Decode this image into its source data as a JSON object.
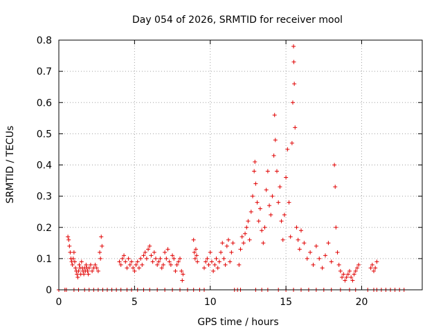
{
  "chart_data": {
    "type": "scatter",
    "title": "Day 054 of 2026, SRMTID for receiver mool",
    "xlabel": "GPS time / hours",
    "ylabel": "SRMTID / TECUs",
    "xlim": [
      0,
      24
    ],
    "ylim": [
      0,
      0.8
    ],
    "xticks": [
      0,
      5,
      10,
      15,
      20
    ],
    "yticks": [
      0,
      0.1,
      0.2,
      0.3,
      0.4,
      0.5,
      0.6,
      0.7,
      0.8
    ],
    "xtick_labels": [
      "0",
      "5",
      "10",
      "15",
      "20"
    ],
    "ytick_labels": [
      "0",
      "0.1",
      "0.2",
      "0.3",
      "0.4",
      "0.5",
      "0.6",
      "0.7",
      "0.8"
    ],
    "grid": true,
    "marker": "+",
    "color": "#e00000",
    "series": [
      {
        "name": "SRMTID",
        "points": [
          [
            0.0,
            0.0
          ],
          [
            0.4,
            0.0
          ],
          [
            0.5,
            0.0
          ],
          [
            1.0,
            0.0
          ],
          [
            1.3,
            0.0
          ],
          [
            1.7,
            0.0
          ],
          [
            2.0,
            0.0
          ],
          [
            2.3,
            0.0
          ],
          [
            2.6,
            0.0
          ],
          [
            2.9,
            0.0
          ],
          [
            3.2,
            0.0
          ],
          [
            3.5,
            0.0
          ],
          [
            3.8,
            0.0
          ],
          [
            4.1,
            0.0
          ],
          [
            4.5,
            0.0
          ],
          [
            4.8,
            0.0
          ],
          [
            5.2,
            0.0
          ],
          [
            5.6,
            0.0
          ],
          [
            6.0,
            0.0
          ],
          [
            6.5,
            0.0
          ],
          [
            7.0,
            0.0
          ],
          [
            7.5,
            0.0
          ],
          [
            8.0,
            0.0
          ],
          [
            8.5,
            0.0
          ],
          [
            8.9,
            0.0
          ],
          [
            9.3,
            0.0
          ],
          [
            9.6,
            0.0
          ],
          [
            11.6,
            0.0
          ],
          [
            11.8,
            0.0
          ],
          [
            12.0,
            0.0
          ],
          [
            13.0,
            0.0
          ],
          [
            13.4,
            0.0
          ],
          [
            13.8,
            0.0
          ],
          [
            14.5,
            0.0
          ],
          [
            15.0,
            0.0
          ],
          [
            15.5,
            0.0
          ],
          [
            16.0,
            0.0
          ],
          [
            16.5,
            0.0
          ],
          [
            17.0,
            0.0
          ],
          [
            17.5,
            0.0
          ],
          [
            18.0,
            0.0
          ],
          [
            18.6,
            0.0
          ],
          [
            19.2,
            0.0
          ],
          [
            19.6,
            0.0
          ],
          [
            20.4,
            0.0
          ],
          [
            20.8,
            0.0
          ],
          [
            21.0,
            0.0
          ],
          [
            21.3,
            0.0
          ],
          [
            21.6,
            0.0
          ],
          [
            21.9,
            0.0
          ],
          [
            22.2,
            0.0
          ],
          [
            22.5,
            0.0
          ],
          [
            22.8,
            0.0
          ],
          [
            0.6,
            0.17
          ],
          [
            0.65,
            0.16
          ],
          [
            0.7,
            0.14
          ],
          [
            0.75,
            0.12
          ],
          [
            0.8,
            0.1
          ],
          [
            0.85,
            0.09
          ],
          [
            0.9,
            0.08
          ],
          [
            0.95,
            0.1
          ],
          [
            1.0,
            0.12
          ],
          [
            1.05,
            0.09
          ],
          [
            1.1,
            0.07
          ],
          [
            1.15,
            0.06
          ],
          [
            1.2,
            0.05
          ],
          [
            1.25,
            0.04
          ],
          [
            1.3,
            0.06
          ],
          [
            1.35,
            0.08
          ],
          [
            1.4,
            0.07
          ],
          [
            1.45,
            0.05
          ],
          [
            1.5,
            0.09
          ],
          [
            1.55,
            0.07
          ],
          [
            1.6,
            0.06
          ],
          [
            1.65,
            0.05
          ],
          [
            1.7,
            0.07
          ],
          [
            1.75,
            0.06
          ],
          [
            1.8,
            0.08
          ],
          [
            1.85,
            0.07
          ],
          [
            1.9,
            0.06
          ],
          [
            1.95,
            0.05
          ],
          [
            2.0,
            0.07
          ],
          [
            2.1,
            0.08
          ],
          [
            2.2,
            0.06
          ],
          [
            2.3,
            0.07
          ],
          [
            2.4,
            0.08
          ],
          [
            2.5,
            0.07
          ],
          [
            2.6,
            0.06
          ],
          [
            2.7,
            0.12
          ],
          [
            2.75,
            0.1
          ],
          [
            2.8,
            0.17
          ],
          [
            2.85,
            0.14
          ],
          [
            4.0,
            0.09
          ],
          [
            4.1,
            0.08
          ],
          [
            4.2,
            0.1
          ],
          [
            4.3,
            0.11
          ],
          [
            4.4,
            0.09
          ],
          [
            4.5,
            0.07
          ],
          [
            4.6,
            0.1
          ],
          [
            4.7,
            0.08
          ],
          [
            4.8,
            0.09
          ],
          [
            4.9,
            0.07
          ],
          [
            5.0,
            0.06
          ],
          [
            5.1,
            0.08
          ],
          [
            5.2,
            0.09
          ],
          [
            5.3,
            0.07
          ],
          [
            5.4,
            0.1
          ],
          [
            5.5,
            0.08
          ],
          [
            5.6,
            0.11
          ],
          [
            5.7,
            0.12
          ],
          [
            5.8,
            0.1
          ],
          [
            5.9,
            0.13
          ],
          [
            6.0,
            0.14
          ],
          [
            6.1,
            0.11
          ],
          [
            6.2,
            0.09
          ],
          [
            6.3,
            0.12
          ],
          [
            6.4,
            0.1
          ],
          [
            6.5,
            0.08
          ],
          [
            6.6,
            0.09
          ],
          [
            6.7,
            0.1
          ],
          [
            6.8,
            0.07
          ],
          [
            6.9,
            0.08
          ],
          [
            7.0,
            0.12
          ],
          [
            7.1,
            0.1
          ],
          [
            7.2,
            0.13
          ],
          [
            7.3,
            0.09
          ],
          [
            7.4,
            0.08
          ],
          [
            7.5,
            0.11
          ],
          [
            7.6,
            0.1
          ],
          [
            7.7,
            0.06
          ],
          [
            7.8,
            0.08
          ],
          [
            7.9,
            0.09
          ],
          [
            8.0,
            0.1
          ],
          [
            8.1,
            0.06
          ],
          [
            8.15,
            0.03
          ],
          [
            8.2,
            0.05
          ],
          [
            8.9,
            0.16
          ],
          [
            8.95,
            0.12
          ],
          [
            9.0,
            0.1
          ],
          [
            9.05,
            0.13
          ],
          [
            9.1,
            0.11
          ],
          [
            9.15,
            0.09
          ],
          [
            9.6,
            0.07
          ],
          [
            9.7,
            0.09
          ],
          [
            9.8,
            0.1
          ],
          [
            9.9,
            0.08
          ],
          [
            10.0,
            0.12
          ],
          [
            10.1,
            0.09
          ],
          [
            10.2,
            0.06
          ],
          [
            10.3,
            0.08
          ],
          [
            10.4,
            0.1
          ],
          [
            10.5,
            0.07
          ],
          [
            10.6,
            0.09
          ],
          [
            10.7,
            0.12
          ],
          [
            10.8,
            0.15
          ],
          [
            10.9,
            0.1
          ],
          [
            11.0,
            0.08
          ],
          [
            11.1,
            0.14
          ],
          [
            11.2,
            0.16
          ],
          [
            11.3,
            0.09
          ],
          [
            11.4,
            0.12
          ],
          [
            11.5,
            0.15
          ],
          [
            11.9,
            0.08
          ],
          [
            12.0,
            0.13
          ],
          [
            12.1,
            0.17
          ],
          [
            12.2,
            0.15
          ],
          [
            12.3,
            0.18
          ],
          [
            12.4,
            0.2
          ],
          [
            12.5,
            0.22
          ],
          [
            12.6,
            0.16
          ],
          [
            12.7,
            0.25
          ],
          [
            12.8,
            0.3
          ],
          [
            12.9,
            0.38
          ],
          [
            12.95,
            0.41
          ],
          [
            13.0,
            0.34
          ],
          [
            13.1,
            0.28
          ],
          [
            13.2,
            0.22
          ],
          [
            13.3,
            0.26
          ],
          [
            13.4,
            0.19
          ],
          [
            13.5,
            0.15
          ],
          [
            13.6,
            0.2
          ],
          [
            13.7,
            0.32
          ],
          [
            13.8,
            0.38
          ],
          [
            13.9,
            0.27
          ],
          [
            14.0,
            0.24
          ],
          [
            14.1,
            0.3
          ],
          [
            14.2,
            0.43
          ],
          [
            14.25,
            0.56
          ],
          [
            14.3,
            0.48
          ],
          [
            14.4,
            0.38
          ],
          [
            14.5,
            0.28
          ],
          [
            14.6,
            0.33
          ],
          [
            14.7,
            0.22
          ],
          [
            14.8,
            0.16
          ],
          [
            14.9,
            0.24
          ],
          [
            15.0,
            0.36
          ],
          [
            15.1,
            0.45
          ],
          [
            15.2,
            0.28
          ],
          [
            15.3,
            0.17
          ],
          [
            15.4,
            0.47
          ],
          [
            15.45,
            0.6
          ],
          [
            15.5,
            0.78
          ],
          [
            15.52,
            0.73
          ],
          [
            15.55,
            0.66
          ],
          [
            15.6,
            0.52
          ],
          [
            15.7,
            0.2
          ],
          [
            15.8,
            0.16
          ],
          [
            15.9,
            0.13
          ],
          [
            16.0,
            0.19
          ],
          [
            16.2,
            0.15
          ],
          [
            16.4,
            0.1
          ],
          [
            16.6,
            0.12
          ],
          [
            16.8,
            0.08
          ],
          [
            17.0,
            0.14
          ],
          [
            17.2,
            0.1
          ],
          [
            17.4,
            0.07
          ],
          [
            17.6,
            0.11
          ],
          [
            17.8,
            0.15
          ],
          [
            18.0,
            0.09
          ],
          [
            18.2,
            0.4
          ],
          [
            18.25,
            0.33
          ],
          [
            18.3,
            0.2
          ],
          [
            18.4,
            0.12
          ],
          [
            18.5,
            0.08
          ],
          [
            18.6,
            0.06
          ],
          [
            18.7,
            0.04
          ],
          [
            18.8,
            0.05
          ],
          [
            18.9,
            0.03
          ],
          [
            19.0,
            0.04
          ],
          [
            19.1,
            0.05
          ],
          [
            19.2,
            0.06
          ],
          [
            19.3,
            0.04
          ],
          [
            19.4,
            0.03
          ],
          [
            19.5,
            0.05
          ],
          [
            19.6,
            0.06
          ],
          [
            19.7,
            0.07
          ],
          [
            19.8,
            0.08
          ],
          [
            20.6,
            0.07
          ],
          [
            20.7,
            0.08
          ],
          [
            20.8,
            0.06
          ],
          [
            20.9,
            0.07
          ],
          [
            21.0,
            0.09
          ]
        ]
      }
    ]
  }
}
